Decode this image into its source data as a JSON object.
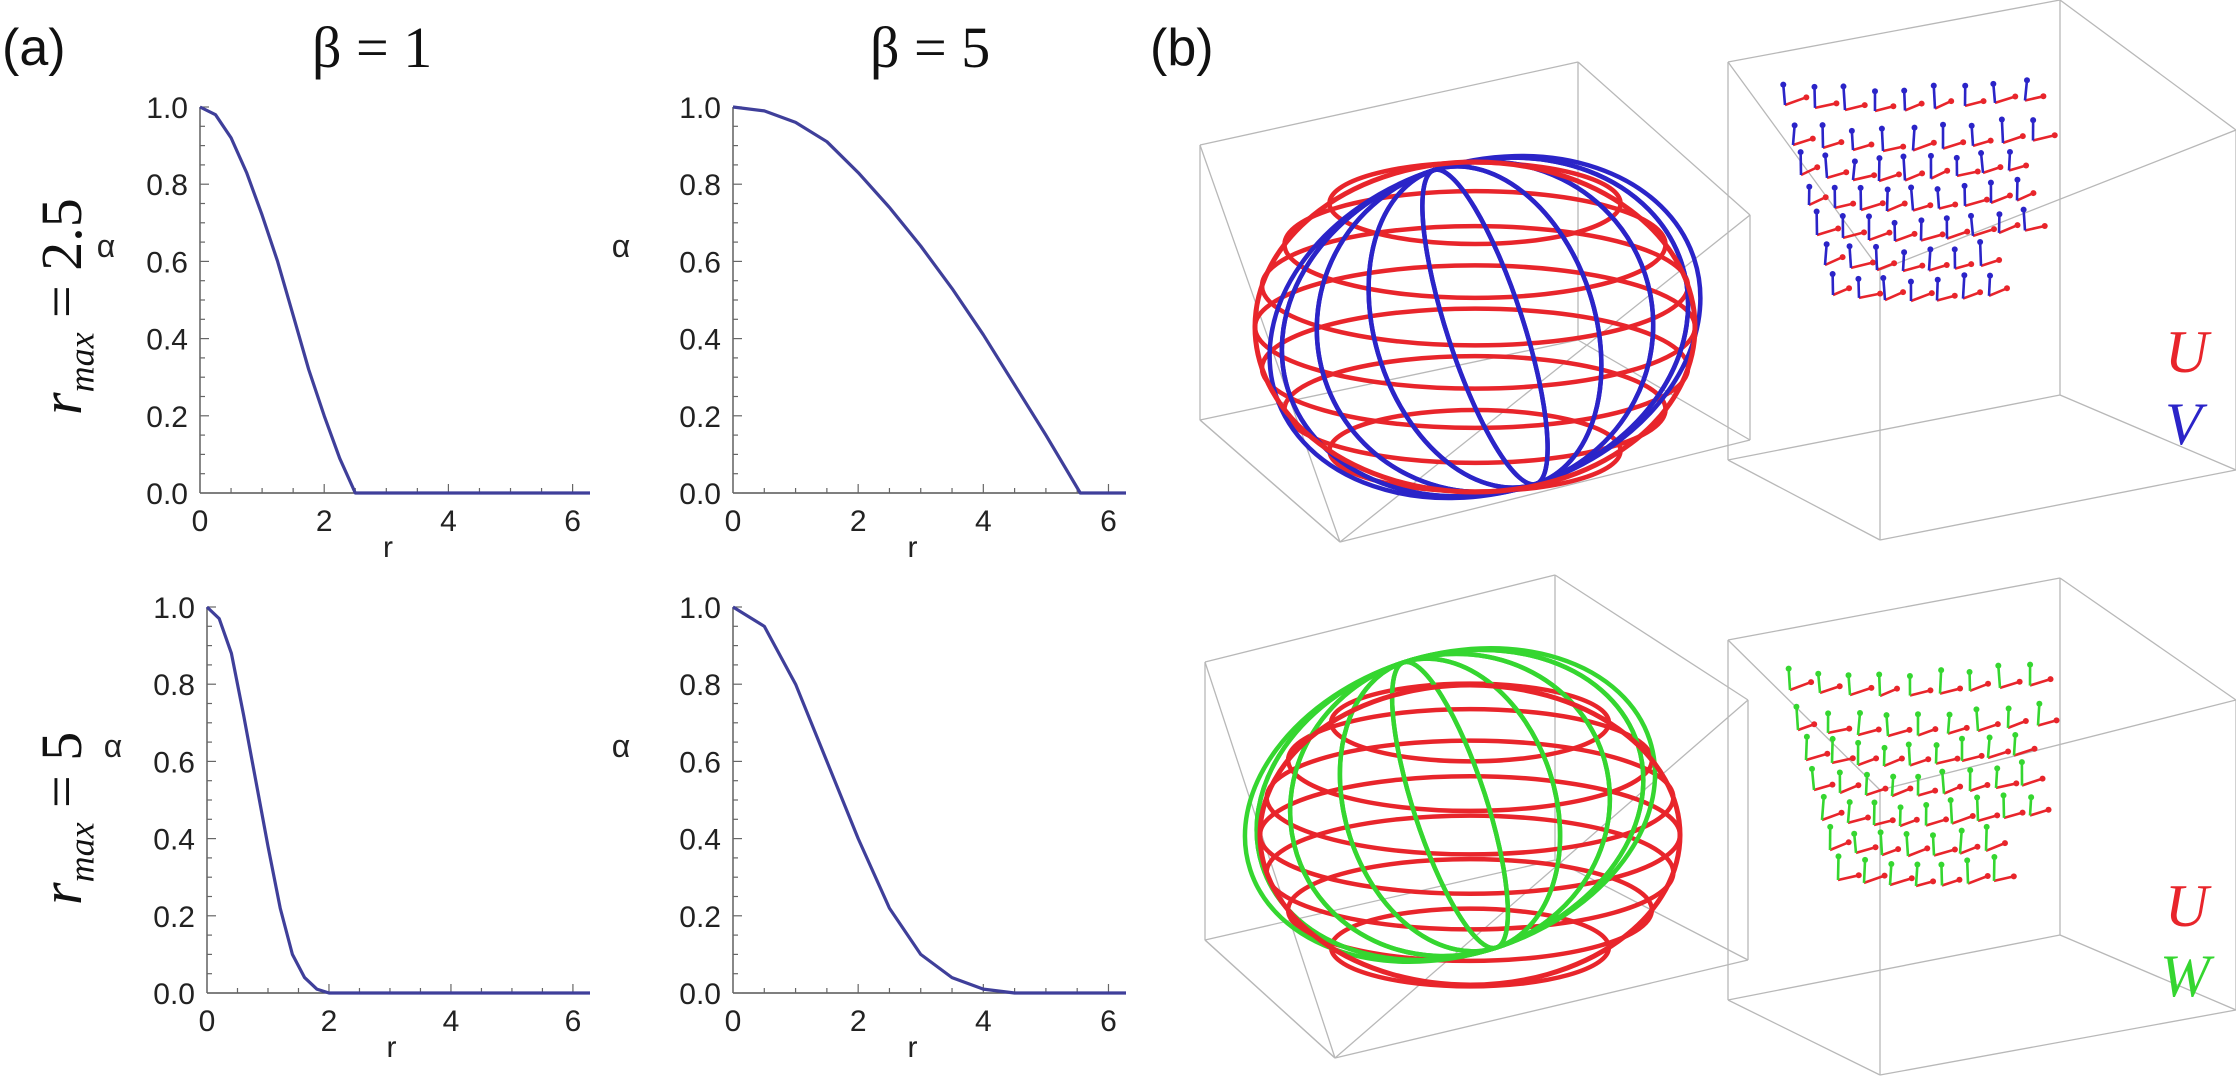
{
  "panel_labels": {
    "a": "(a)",
    "b": "(b)"
  },
  "column_titles": [
    "β = 1",
    "β = 5"
  ],
  "row_labels": [
    {
      "symbol": "r",
      "subscript": "max",
      "value": "= 2.5"
    },
    {
      "symbol": "r",
      "subscript": "max",
      "value": "= 5"
    }
  ],
  "chart_data": [
    {
      "type": "line",
      "beta": 1,
      "r_max": 2.5,
      "xlabel": "r",
      "ylabel": "α",
      "xlim": [
        0,
        6.28
      ],
      "ylim": [
        0,
        1.0
      ],
      "xticks": [
        "0",
        "2",
        "4",
        "6"
      ],
      "yticks": [
        "0.0",
        "0.2",
        "0.4",
        "0.6",
        "0.8",
        "1.0"
      ],
      "color": "#3f3f9a",
      "x": [
        0,
        0.25,
        0.5,
        0.75,
        1.0,
        1.25,
        1.5,
        1.75,
        2.0,
        2.25,
        2.5,
        3.0,
        4.0,
        5.0,
        6.28
      ],
      "y": [
        1.0,
        0.98,
        0.92,
        0.83,
        0.72,
        0.6,
        0.46,
        0.32,
        0.2,
        0.09,
        0.0,
        0.0,
        0.0,
        0.0,
        0.0
      ]
    },
    {
      "type": "line",
      "beta": 5,
      "r_max": 2.5,
      "xlabel": "r",
      "ylabel": "α",
      "xlim": [
        0,
        6.28
      ],
      "ylim": [
        0,
        1.0
      ],
      "xticks": [
        "0",
        "2",
        "4",
        "6"
      ],
      "yticks": [
        "0.0",
        "0.2",
        "0.4",
        "0.6",
        "0.8",
        "1.0"
      ],
      "color": "#3f3f9a",
      "x": [
        0,
        0.5,
        1.0,
        1.5,
        2.0,
        2.5,
        3.0,
        3.5,
        4.0,
        4.5,
        5.0,
        5.55,
        6.0,
        6.28
      ],
      "y": [
        1.0,
        0.99,
        0.96,
        0.91,
        0.83,
        0.74,
        0.64,
        0.53,
        0.41,
        0.28,
        0.15,
        0.0,
        0.0,
        0.0
      ]
    },
    {
      "type": "line",
      "beta": 1,
      "r_max": 5,
      "xlabel": "r",
      "ylabel": "α",
      "xlim": [
        0,
        6.28
      ],
      "ylim": [
        0,
        1.0
      ],
      "xticks": [
        "0",
        "2",
        "4",
        "6"
      ],
      "yticks": [
        "0.0",
        "0.2",
        "0.4",
        "0.6",
        "0.8",
        "1.0"
      ],
      "color": "#3f3f9a",
      "x": [
        0,
        0.2,
        0.4,
        0.6,
        0.8,
        1.0,
        1.2,
        1.4,
        1.6,
        1.8,
        2.0,
        2.5,
        3.0,
        4.0,
        5.0,
        6.28
      ],
      "y": [
        1.0,
        0.97,
        0.88,
        0.72,
        0.55,
        0.38,
        0.22,
        0.1,
        0.04,
        0.01,
        0.0,
        0.0,
        0.0,
        0.0,
        0.0,
        0.0
      ]
    },
    {
      "type": "line",
      "beta": 5,
      "r_max": 5,
      "xlabel": "r",
      "ylabel": "α",
      "xlim": [
        0,
        6.28
      ],
      "ylim": [
        0,
        1.0
      ],
      "xticks": [
        "0",
        "2",
        "4",
        "6"
      ],
      "yticks": [
        "0.0",
        "0.2",
        "0.4",
        "0.6",
        "0.8",
        "1.0"
      ],
      "color": "#3f3f9a",
      "x": [
        0,
        0.5,
        1.0,
        1.5,
        2.0,
        2.5,
        3.0,
        3.5,
        4.0,
        4.5,
        5.0,
        5.5,
        6.28
      ],
      "y": [
        1.0,
        0.95,
        0.8,
        0.6,
        0.4,
        0.22,
        0.1,
        0.04,
        0.01,
        0.0,
        0.0,
        0.0,
        0.0
      ]
    }
  ],
  "panel_b": {
    "top_legend": [
      {
        "label": "U",
        "color": "#e8252b"
      },
      {
        "label": "V",
        "color": "#2b24c8"
      }
    ],
    "bottom_legend": [
      {
        "label": "U",
        "color": "#e8252b"
      },
      {
        "label": "W",
        "color": "#35d630"
      }
    ],
    "colors": {
      "U": "#e8252b",
      "V": "#2b24c8",
      "W": "#35d630",
      "box": "#b8b8b8"
    }
  }
}
